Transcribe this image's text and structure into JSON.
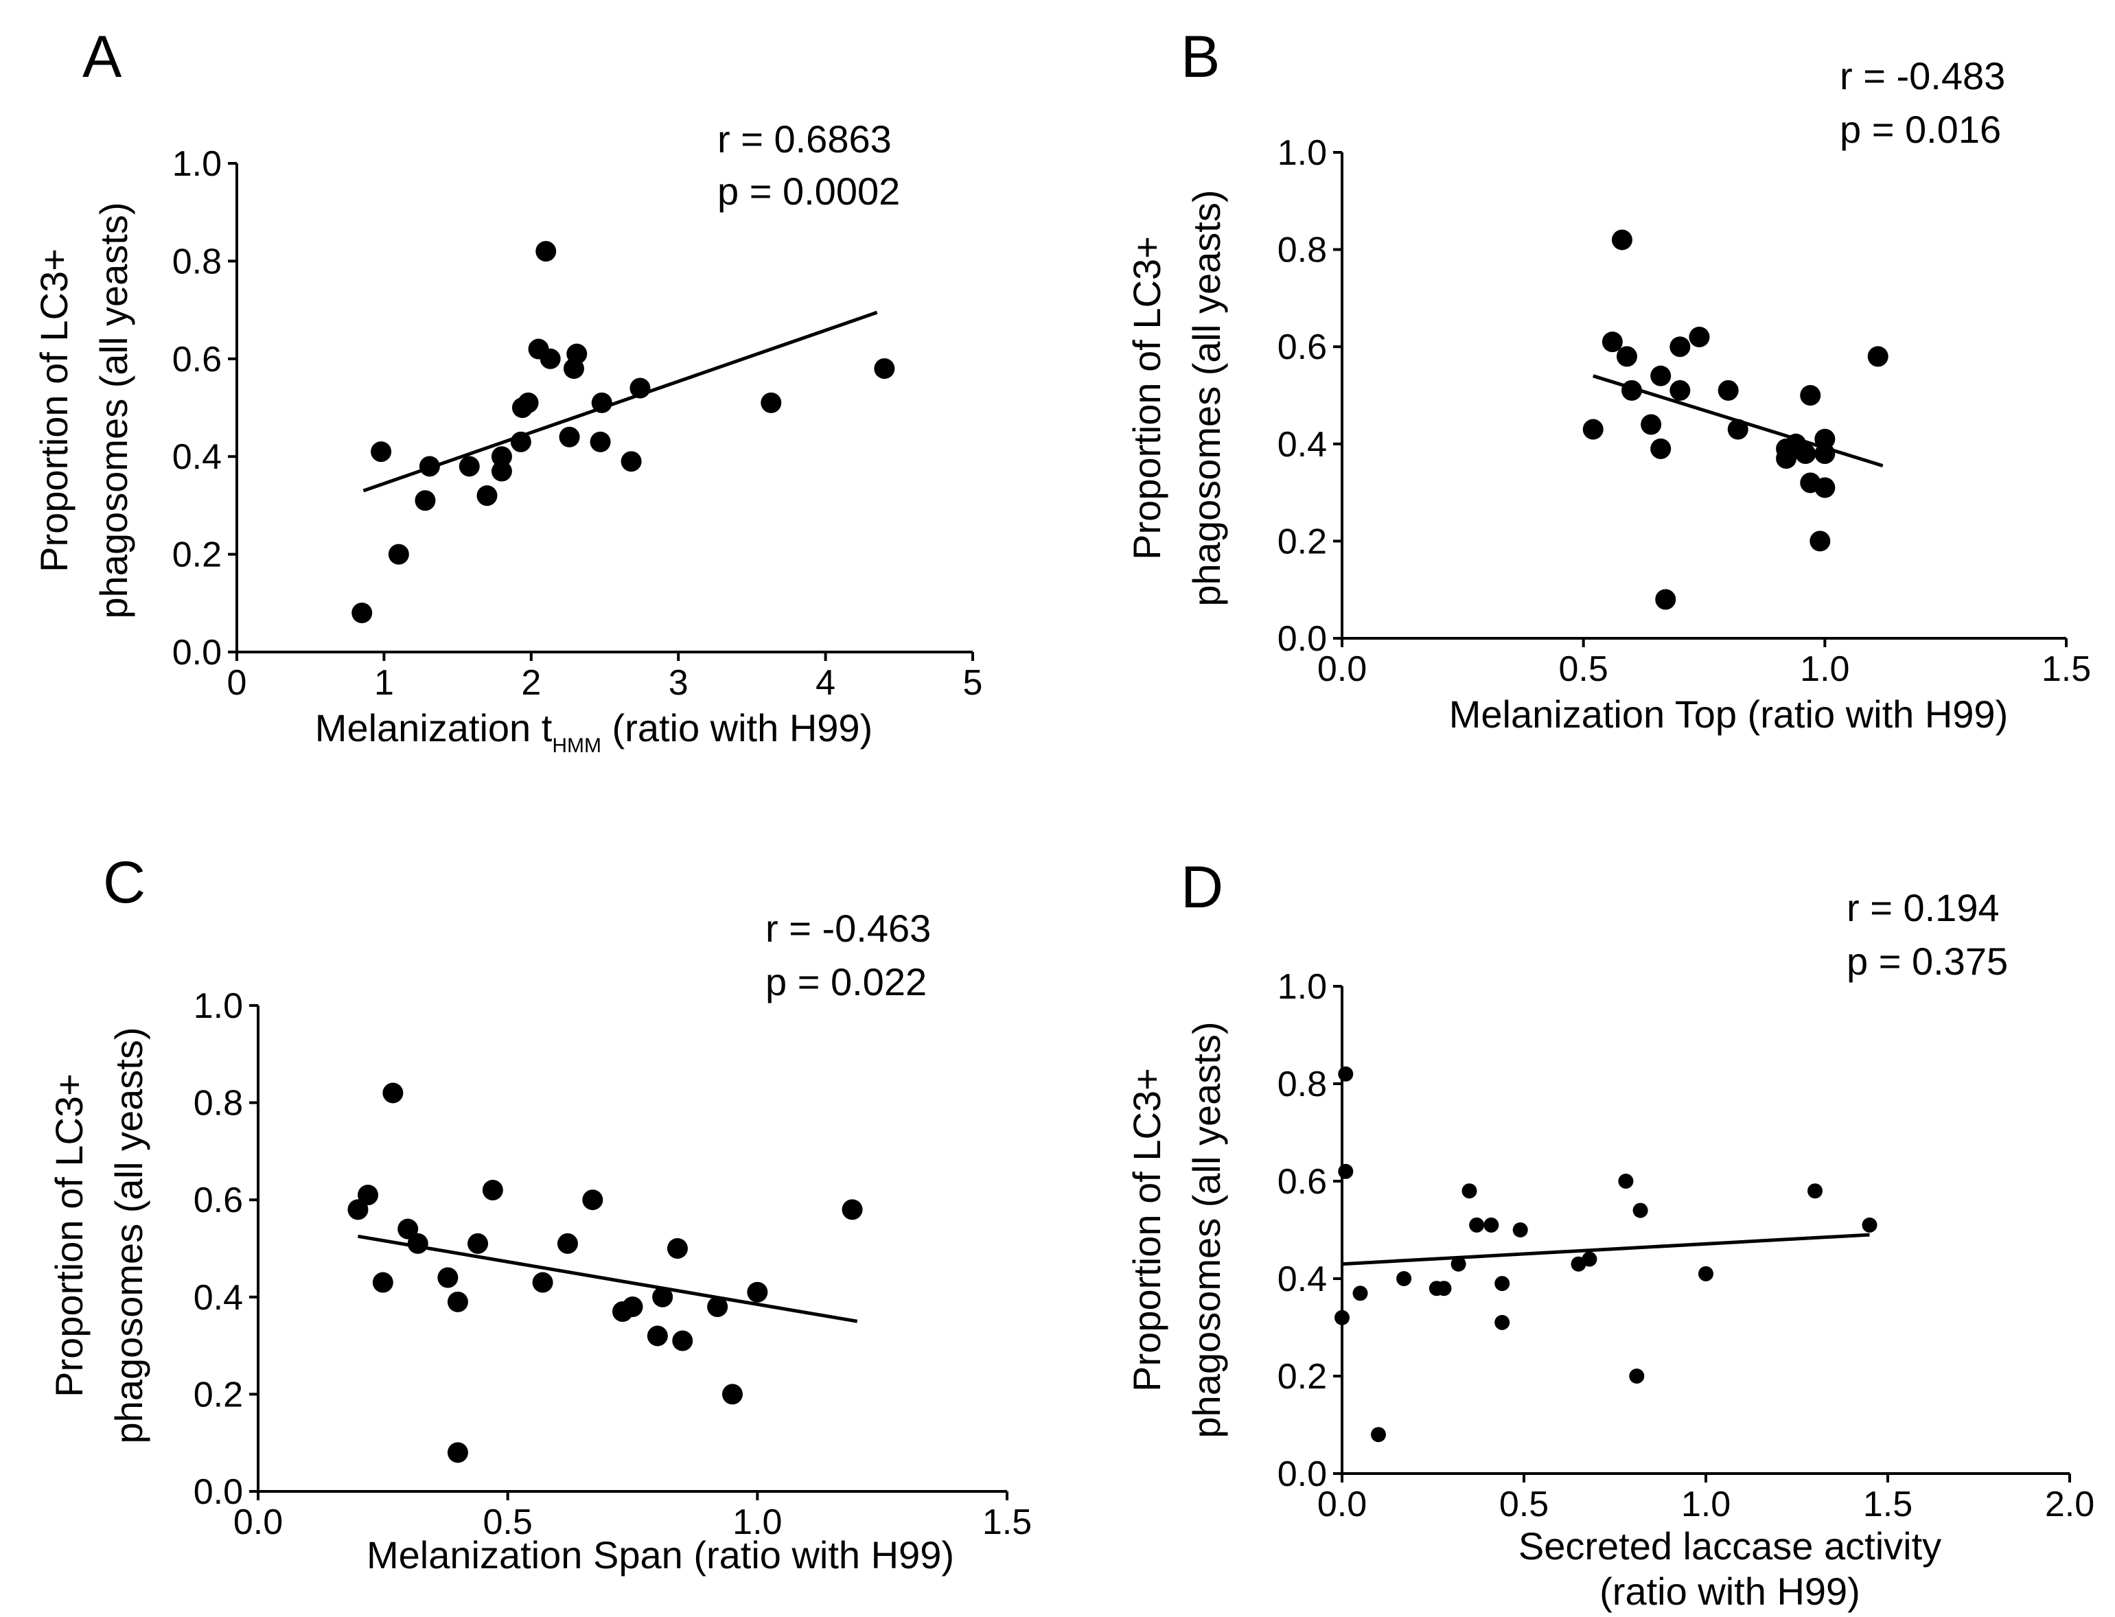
{
  "chart_data": [
    {
      "panel": "A",
      "type": "scatter",
      "xlabel": "Melanization t",
      "xlabel_sub": "HMM",
      "xlabel_suffix": " (ratio with H99)",
      "ylabel_line1": "Proportion of LC3+",
      "ylabel_line2": "phagosomes (all yeasts)",
      "xlim": [
        0,
        5
      ],
      "ylim": [
        0,
        1
      ],
      "xticks": [
        "0",
        "1",
        "2",
        "3",
        "4",
        "5"
      ],
      "xtick_values": [
        0,
        1,
        2,
        3,
        4,
        5
      ],
      "yticks": [
        "0.0",
        "0.2",
        "0.4",
        "0.6",
        "0.8",
        "1.0"
      ],
      "ytick_values": [
        0,
        0.2,
        0.4,
        0.6,
        0.8,
        1.0
      ],
      "r_text": "r = 0.6863",
      "p_text": "p = 0.0002",
      "fit_line": [
        [
          0.86,
          0.33
        ],
        [
          4.35,
          0.695
        ]
      ],
      "points": [
        [
          0.85,
          0.08
        ],
        [
          0.98,
          0.41
        ],
        [
          1.1,
          0.2
        ],
        [
          1.28,
          0.31
        ],
        [
          1.31,
          0.38
        ],
        [
          1.58,
          0.38
        ],
        [
          1.7,
          0.32
        ],
        [
          1.8,
          0.4
        ],
        [
          1.8,
          0.37
        ],
        [
          1.93,
          0.43
        ],
        [
          1.94,
          0.5
        ],
        [
          1.98,
          0.51
        ],
        [
          2.05,
          0.62
        ],
        [
          2.1,
          0.82
        ],
        [
          2.13,
          0.6
        ],
        [
          2.26,
          0.44
        ],
        [
          2.29,
          0.58
        ],
        [
          2.31,
          0.61
        ],
        [
          2.47,
          0.43
        ],
        [
          2.48,
          0.51
        ],
        [
          2.68,
          0.39
        ],
        [
          2.74,
          0.54
        ],
        [
          3.63,
          0.51
        ],
        [
          4.4,
          0.58
        ]
      ],
      "marker": "large"
    },
    {
      "panel": "B",
      "type": "scatter",
      "xlabel": "Melanization Top (ratio with H99)",
      "ylabel_line1": "Proportion of LC3+",
      "ylabel_line2": "phagosomes (all yeasts)",
      "xlim": [
        0,
        1.5
      ],
      "ylim": [
        0,
        1
      ],
      "xticks": [
        "0.0",
        "0.5",
        "1.0",
        "1.5"
      ],
      "xtick_values": [
        0,
        0.5,
        1.0,
        1.5
      ],
      "yticks": [
        "0.0",
        "0.2",
        "0.4",
        "0.6",
        "0.8",
        "1.0"
      ],
      "ytick_values": [
        0,
        0.2,
        0.4,
        0.6,
        0.8,
        1.0
      ],
      "r_text": "r = -0.483",
      "p_text": "p = 0.016",
      "fit_line": [
        [
          0.52,
          0.54
        ],
        [
          1.12,
          0.355
        ]
      ],
      "points": [
        [
          0.52,
          0.43
        ],
        [
          0.56,
          0.61
        ],
        [
          0.58,
          0.82
        ],
        [
          0.59,
          0.58
        ],
        [
          0.6,
          0.51
        ],
        [
          0.64,
          0.44
        ],
        [
          0.66,
          0.54
        ],
        [
          0.66,
          0.39
        ],
        [
          0.67,
          0.08
        ],
        [
          0.7,
          0.6
        ],
        [
          0.7,
          0.51
        ],
        [
          0.74,
          0.62
        ],
        [
          0.8,
          0.51
        ],
        [
          0.82,
          0.43
        ],
        [
          0.92,
          0.37
        ],
        [
          0.92,
          0.39
        ],
        [
          0.94,
          0.4
        ],
        [
          0.96,
          0.38
        ],
        [
          0.97,
          0.5
        ],
        [
          0.97,
          0.32
        ],
        [
          0.99,
          0.2
        ],
        [
          1.0,
          0.41
        ],
        [
          1.0,
          0.38
        ],
        [
          1.0,
          0.31
        ],
        [
          1.11,
          0.58
        ]
      ],
      "marker": "large"
    },
    {
      "panel": "C",
      "type": "scatter",
      "xlabel": "Melanization Span (ratio with H99)",
      "ylabel_line1": "Proportion of LC3+",
      "ylabel_line2": "phagosomes (all yeasts)",
      "xlim": [
        0,
        1.5
      ],
      "ylim": [
        0,
        1
      ],
      "xticks": [
        "0.0",
        "0.5",
        "1.0",
        "1.5"
      ],
      "xtick_values": [
        0,
        0.5,
        1.0,
        1.5
      ],
      "yticks": [
        "0.0",
        "0.2",
        "0.4",
        "0.6",
        "0.8",
        "1.0"
      ],
      "ytick_values": [
        0,
        0.2,
        0.4,
        0.6,
        0.8,
        1.0
      ],
      "r_text": "r = -0.463",
      "p_text": "p = 0.022",
      "fit_line": [
        [
          0.2,
          0.525
        ],
        [
          1.2,
          0.35
        ]
      ],
      "points": [
        [
          0.2,
          0.58
        ],
        [
          0.22,
          0.61
        ],
        [
          0.25,
          0.43
        ],
        [
          0.27,
          0.82
        ],
        [
          0.3,
          0.54
        ],
        [
          0.32,
          0.51
        ],
        [
          0.38,
          0.44
        ],
        [
          0.4,
          0.39
        ],
        [
          0.4,
          0.08
        ],
        [
          0.44,
          0.51
        ],
        [
          0.47,
          0.62
        ],
        [
          0.57,
          0.43
        ],
        [
          0.62,
          0.51
        ],
        [
          0.67,
          0.6
        ],
        [
          0.73,
          0.37
        ],
        [
          0.75,
          0.38
        ],
        [
          0.8,
          0.32
        ],
        [
          0.81,
          0.4
        ],
        [
          0.84,
          0.5
        ],
        [
          0.85,
          0.31
        ],
        [
          0.92,
          0.38
        ],
        [
          0.95,
          0.2
        ],
        [
          1.0,
          0.41
        ],
        [
          1.19,
          0.58
        ]
      ],
      "marker": "large"
    },
    {
      "panel": "D",
      "type": "scatter",
      "xlabel": "Secreted laccase activity",
      "xlabel_line2": "(ratio with H99)",
      "ylabel_line1": "Proportion of LC3+",
      "ylabel_line2": "phagosomes (all yeasts)",
      "xlim": [
        0,
        2
      ],
      "ylim": [
        0,
        1
      ],
      "xticks": [
        "0.0",
        "0.5",
        "1.0",
        "1.5",
        "2.0"
      ],
      "xtick_values": [
        0,
        0.5,
        1.0,
        1.5,
        2.0
      ],
      "yticks": [
        "0.0",
        "0.2",
        "0.4",
        "0.6",
        "0.8",
        "1.0"
      ],
      "ytick_values": [
        0,
        0.2,
        0.4,
        0.6,
        0.8,
        1.0
      ],
      "r_text": "r = 0.194",
      "p_text": "p = 0.375",
      "fit_line": [
        [
          0,
          0.43
        ],
        [
          1.45,
          0.49
        ]
      ],
      "points": [
        [
          0.0,
          0.32
        ],
        [
          0.01,
          0.82
        ],
        [
          0.01,
          0.62
        ],
        [
          0.05,
          0.37
        ],
        [
          0.1,
          0.08
        ],
        [
          0.17,
          0.4
        ],
        [
          0.26,
          0.38
        ],
        [
          0.28,
          0.38
        ],
        [
          0.32,
          0.43
        ],
        [
          0.35,
          0.58
        ],
        [
          0.37,
          0.51
        ],
        [
          0.41,
          0.51
        ],
        [
          0.44,
          0.39
        ],
        [
          0.44,
          0.31
        ],
        [
          0.49,
          0.5
        ],
        [
          0.65,
          0.43
        ],
        [
          0.68,
          0.44
        ],
        [
          0.78,
          0.6
        ],
        [
          0.81,
          0.2
        ],
        [
          0.82,
          0.54
        ],
        [
          1.0,
          0.41
        ],
        [
          1.3,
          0.58
        ],
        [
          1.45,
          0.51
        ]
      ],
      "marker": "small"
    }
  ]
}
